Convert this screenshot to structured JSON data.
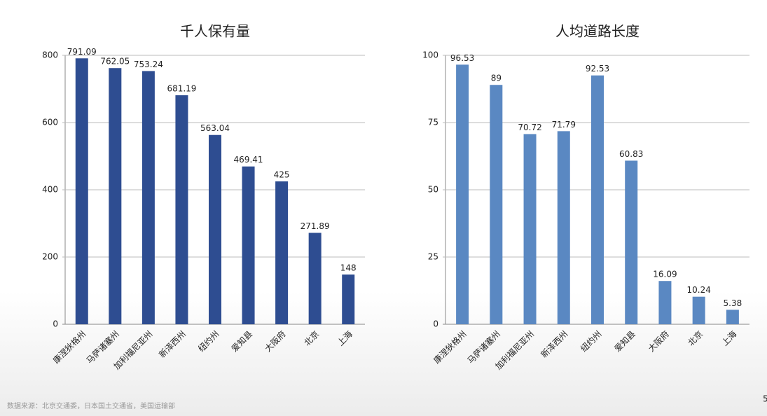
{
  "chart_data": [
    {
      "type": "bar",
      "title": "千人保有量",
      "categories": [
        "康涅狄格州",
        "马萨诸塞州",
        "加利福尼亚州",
        "新泽西州",
        "纽约州",
        "爱知县",
        "大阪府",
        "北京",
        "上海"
      ],
      "values": [
        791.09,
        762.05,
        753.24,
        681.19,
        563.04,
        469.41,
        425,
        271.89,
        148
      ],
      "color": "#2e4d91",
      "ylim": [
        0,
        800
      ],
      "yticks": [
        0,
        200,
        400,
        600,
        800
      ],
      "grid": true
    },
    {
      "type": "bar",
      "title": "人均道路长度",
      "categories": [
        "康涅狄格州",
        "马萨诸塞州",
        "加利福尼亚州",
        "新泽西州",
        "纽约州",
        "爱知县",
        "大阪府",
        "北京",
        "上海"
      ],
      "values": [
        96.53,
        89,
        70.72,
        71.79,
        92.53,
        60.83,
        16.09,
        10.24,
        5.38
      ],
      "color": "#5a88c2",
      "ylim": [
        0,
        100
      ],
      "yticks": [
        0,
        25,
        50,
        75,
        100
      ],
      "grid": true
    }
  ],
  "source": "数据来源：北京交通委，日本国土交通省，美国运输部",
  "page_number": "5"
}
